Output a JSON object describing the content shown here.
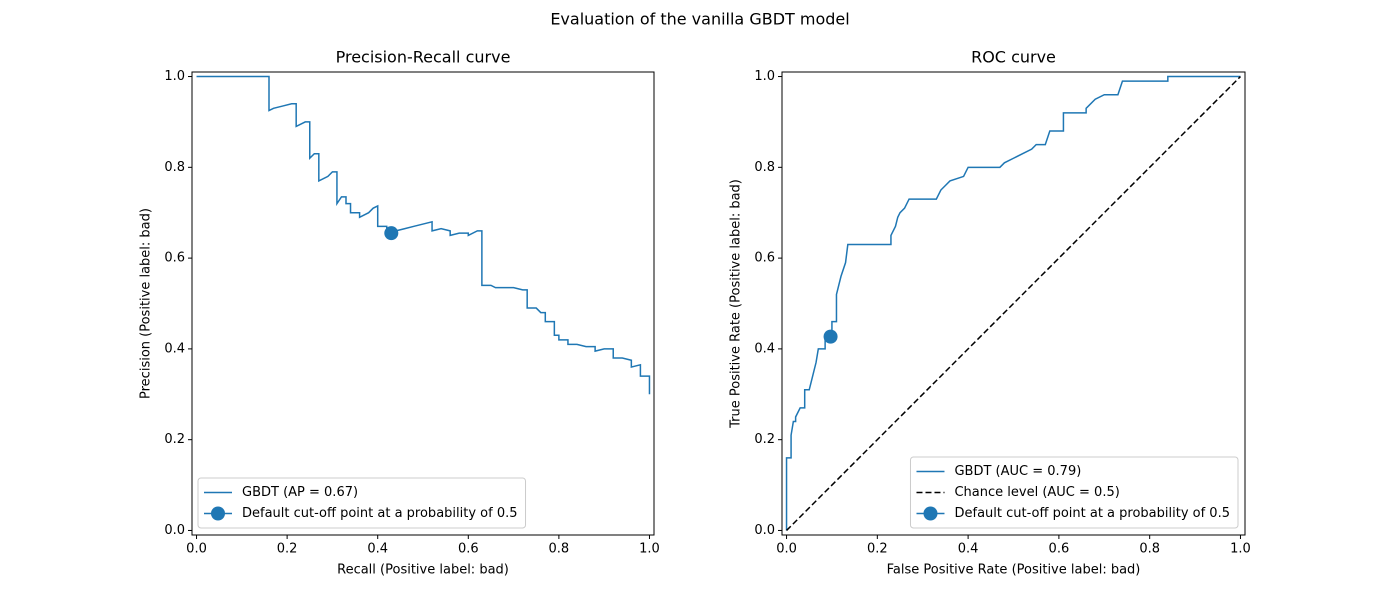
{
  "title": "Evaluation of the vanilla GBDT model",
  "chart_data": [
    {
      "type": "line",
      "title": "Precision-Recall curve",
      "xlabel": "Recall (Positive label: bad)",
      "ylabel": "Precision (Positive label: bad)",
      "xlim": [
        -0.01,
        1.01
      ],
      "ylim": [
        -0.01,
        1.01
      ],
      "xticks": [
        {
          "value": 0,
          "label": "0.0"
        },
        0.2,
        0.4,
        0.6,
        0.8,
        {
          "value": 1,
          "label": "1.0"
        }
      ],
      "yticks": [
        {
          "value": 0,
          "label": "0.0"
        },
        0.2,
        0.4,
        0.6,
        0.8,
        {
          "value": 1,
          "label": "1.0"
        }
      ],
      "legend": "lower left",
      "series": [
        {
          "name": "GBDT (AP = 0.67)",
          "color": "#1f77b4",
          "linestyle": "solid",
          "x": [
            0,
            0.16,
            0.16,
            0.17,
            0.19,
            0.21,
            0.22,
            0.22,
            0.24,
            0.25,
            0.25,
            0.26,
            0.27,
            0.27,
            0.29,
            0.3,
            0.31,
            0.31,
            0.32,
            0.33,
            0.33,
            0.34,
            0.34,
            0.36,
            0.36,
            0.38,
            0.39,
            0.4,
            0.4,
            0.42,
            0.42,
            0.44,
            0.46,
            0.48,
            0.5,
            0.52,
            0.52,
            0.54,
            0.56,
            0.56,
            0.58,
            0.6,
            0.6,
            0.62,
            0.63,
            0.63,
            0.65,
            0.66,
            0.68,
            0.7,
            0.72,
            0.73,
            0.73,
            0.75,
            0.76,
            0.77,
            0.77,
            0.79,
            0.79,
            0.8,
            0.8,
            0.82,
            0.82,
            0.84,
            0.86,
            0.88,
            0.88,
            0.9,
            0.92,
            0.92,
            0.94,
            0.96,
            0.96,
            0.98,
            0.98,
            0.99,
            1.0,
            1.0
          ],
          "values": [
            1.0,
            1.0,
            0.925,
            0.93,
            0.935,
            0.94,
            0.94,
            0.89,
            0.9,
            0.9,
            0.82,
            0.83,
            0.83,
            0.77,
            0.78,
            0.79,
            0.79,
            0.72,
            0.735,
            0.735,
            0.72,
            0.72,
            0.7,
            0.7,
            0.69,
            0.7,
            0.71,
            0.715,
            0.67,
            0.67,
            0.655,
            0.66,
            0.665,
            0.67,
            0.675,
            0.68,
            0.66,
            0.665,
            0.66,
            0.65,
            0.655,
            0.655,
            0.65,
            0.66,
            0.66,
            0.54,
            0.54,
            0.535,
            0.535,
            0.535,
            0.53,
            0.53,
            0.49,
            0.49,
            0.48,
            0.48,
            0.46,
            0.46,
            0.43,
            0.43,
            0.42,
            0.42,
            0.41,
            0.41,
            0.405,
            0.405,
            0.395,
            0.4,
            0.4,
            0.38,
            0.38,
            0.375,
            0.36,
            0.365,
            0.34,
            0.34,
            0.34,
            0.3
          ]
        },
        {
          "name": "Default cut-off point at a probability of 0.5",
          "color": "#1f77b4",
          "marker": "o",
          "x": [
            0.43
          ],
          "values": [
            0.655
          ]
        }
      ]
    },
    {
      "type": "line",
      "title": "ROC curve",
      "xlabel": "False Positive Rate (Positive label: bad)",
      "ylabel": "True Positive Rate (Positive label: bad)",
      "xlim": [
        -0.01,
        1.01
      ],
      "ylim": [
        -0.01,
        1.01
      ],
      "xticks": [
        {
          "value": 0,
          "label": "0.0"
        },
        0.2,
        0.4,
        0.6,
        0.8,
        {
          "value": 1,
          "label": "1.0"
        }
      ],
      "yticks": [
        {
          "value": 0,
          "label": "0.0"
        },
        0.2,
        0.4,
        0.6,
        0.8,
        {
          "value": 1,
          "label": "1.0"
        }
      ],
      "legend": "lower right",
      "series": [
        {
          "name": "GBDT (AUC = 0.79)",
          "color": "#1f77b4",
          "linestyle": "solid",
          "x": [
            0,
            0,
            0.01,
            0.01,
            0.015,
            0.02,
            0.02,
            0.03,
            0.04,
            0.04,
            0.05,
            0.055,
            0.06,
            0.065,
            0.07,
            0.085,
            0.085,
            0.1,
            0.1,
            0.11,
            0.11,
            0.115,
            0.12,
            0.13,
            0.135,
            0.23,
            0.23,
            0.24,
            0.245,
            0.25,
            0.26,
            0.27,
            0.33,
            0.34,
            0.35,
            0.36,
            0.39,
            0.4,
            0.47,
            0.48,
            0.5,
            0.52,
            0.54,
            0.55,
            0.57,
            0.58,
            0.61,
            0.61,
            0.66,
            0.66,
            0.68,
            0.7,
            0.73,
            0.74,
            0.84,
            0.84,
            1.0
          ],
          "values": [
            0,
            0.16,
            0.16,
            0.21,
            0.24,
            0.24,
            0.25,
            0.27,
            0.27,
            0.31,
            0.31,
            0.33,
            0.35,
            0.37,
            0.4,
            0.4,
            0.43,
            0.43,
            0.46,
            0.46,
            0.52,
            0.54,
            0.56,
            0.59,
            0.63,
            0.63,
            0.65,
            0.67,
            0.69,
            0.7,
            0.71,
            0.73,
            0.73,
            0.75,
            0.76,
            0.77,
            0.78,
            0.8,
            0.8,
            0.81,
            0.82,
            0.83,
            0.84,
            0.85,
            0.85,
            0.88,
            0.88,
            0.92,
            0.92,
            0.93,
            0.95,
            0.96,
            0.96,
            0.99,
            0.99,
            1.0,
            1.0
          ]
        },
        {
          "name": "Chance level (AUC = 0.5)",
          "color": "#000000",
          "linestyle": "dashed",
          "x": [
            0,
            1
          ],
          "values": [
            0,
            1
          ]
        },
        {
          "name": "Default cut-off point at a probability of 0.5",
          "color": "#1f77b4",
          "marker": "o",
          "x": [
            0.097
          ],
          "values": [
            0.427
          ]
        }
      ]
    }
  ]
}
